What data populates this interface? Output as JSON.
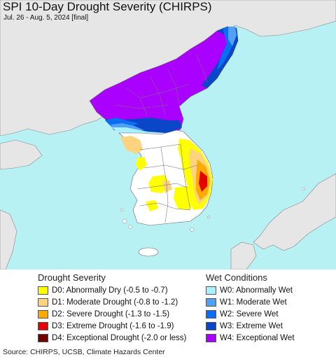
{
  "title": "SPI 10-Day Drought Severity (CHIRPS)",
  "subtitle": "Jul. 26 - Aug. 5, 2024 [final]",
  "colors": {
    "ocean": "#b8f1f3",
    "land": "#e6e6e6",
    "study_land": "#ffffff",
    "border": "#777777"
  },
  "legend": {
    "drought": {
      "heading": "Drought Severity",
      "items": [
        {
          "label": "D0: Abnormally Dry (-0.5 to -0.7)",
          "color": "#ffff00"
        },
        {
          "label": "D1: Moderate Drought (-0.8 to -1.2)",
          "color": "#fcd37f"
        },
        {
          "label": "D2: Severe Drought (-1.3 to -1.5)",
          "color": "#ffaa00"
        },
        {
          "label": "D3: Extreme Drought (-1.6 to -1.9)",
          "color": "#e60000"
        },
        {
          "label": "D4: Exceptional Drought (-2.0 or less)",
          "color": "#730000"
        }
      ]
    },
    "wet": {
      "heading": "Wet Conditions",
      "items": [
        {
          "label": "W0: Abnormally Wet",
          "color": "#aaf0ff"
        },
        {
          "label": "W1: Moderate Wet",
          "color": "#50a0f5"
        },
        {
          "label": "W2: Severe Wet",
          "color": "#0a6ef0"
        },
        {
          "label": "W3: Extreme Wet",
          "color": "#0a46c8"
        },
        {
          "label": "W4: Exceptional Wet",
          "color": "#aa00ff"
        }
      ]
    }
  },
  "source": "Source: CHIRPS, UCSB, Climate Hazards Center"
}
